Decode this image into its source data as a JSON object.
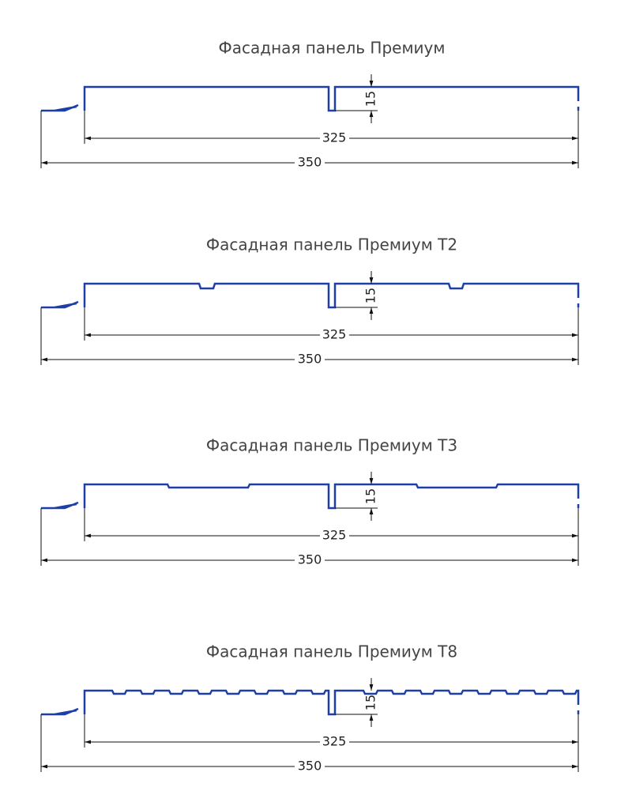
{
  "panels": [
    {
      "title": "Фасадная панель Премиум",
      "height": 15,
      "inner_width": 325,
      "outer_width": 350
    },
    {
      "title": "Фасадная панель Премиум Т2",
      "height": 15,
      "inner_width": 325,
      "outer_width": 350
    },
    {
      "title": "Фасадная панель Премиум Т3",
      "height": 15,
      "inner_width": 325,
      "outer_width": 350
    },
    {
      "title": "Фасадная панель Премиум Т8",
      "height": 15,
      "inner_width": 325,
      "outer_width": 350
    }
  ]
}
